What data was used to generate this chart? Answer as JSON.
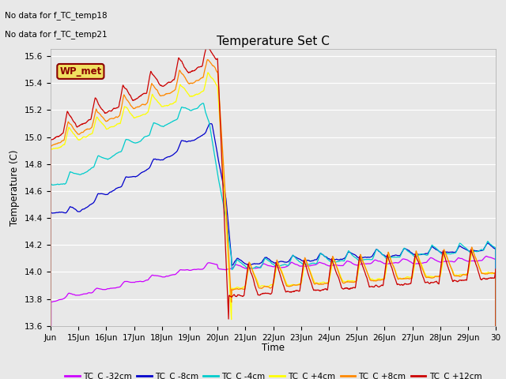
{
  "title": "Temperature Set C",
  "ylabel": "Temperature (C)",
  "xlabel": "Time",
  "no_data_text": [
    "No data for f_TC_temp18",
    "No data for f_TC_temp21"
  ],
  "wp_met_label": "WP_met",
  "ylim": [
    13.6,
    15.65
  ],
  "fig_bg_color": "#e8e8e8",
  "plot_bg_color": "#e8e8e8",
  "grid_color": "#ffffff",
  "xtick_labels": [
    "Jun",
    "15Jun",
    "16Jun",
    "17Jun",
    "18Jun",
    "19Jun",
    "20Jun",
    "21Jun",
    "22Jun",
    "23Jun",
    "24Jun",
    "25Jun",
    "26Jun",
    "27Jun",
    "28Jun",
    "29Jun",
    "30"
  ],
  "legend_entries": [
    {
      "label": "TC_C -32cm",
      "color": "#cc00ff"
    },
    {
      "label": "TC_C -8cm",
      "color": "#0000cc"
    },
    {
      "label": "TC_C -4cm",
      "color": "#00cccc"
    },
    {
      "label": "TC_C +4cm",
      "color": "#ffff00"
    },
    {
      "label": "TC_C +8cm",
      "color": "#ff8800"
    },
    {
      "label": "TC_C +12cm",
      "color": "#cc0000"
    }
  ]
}
